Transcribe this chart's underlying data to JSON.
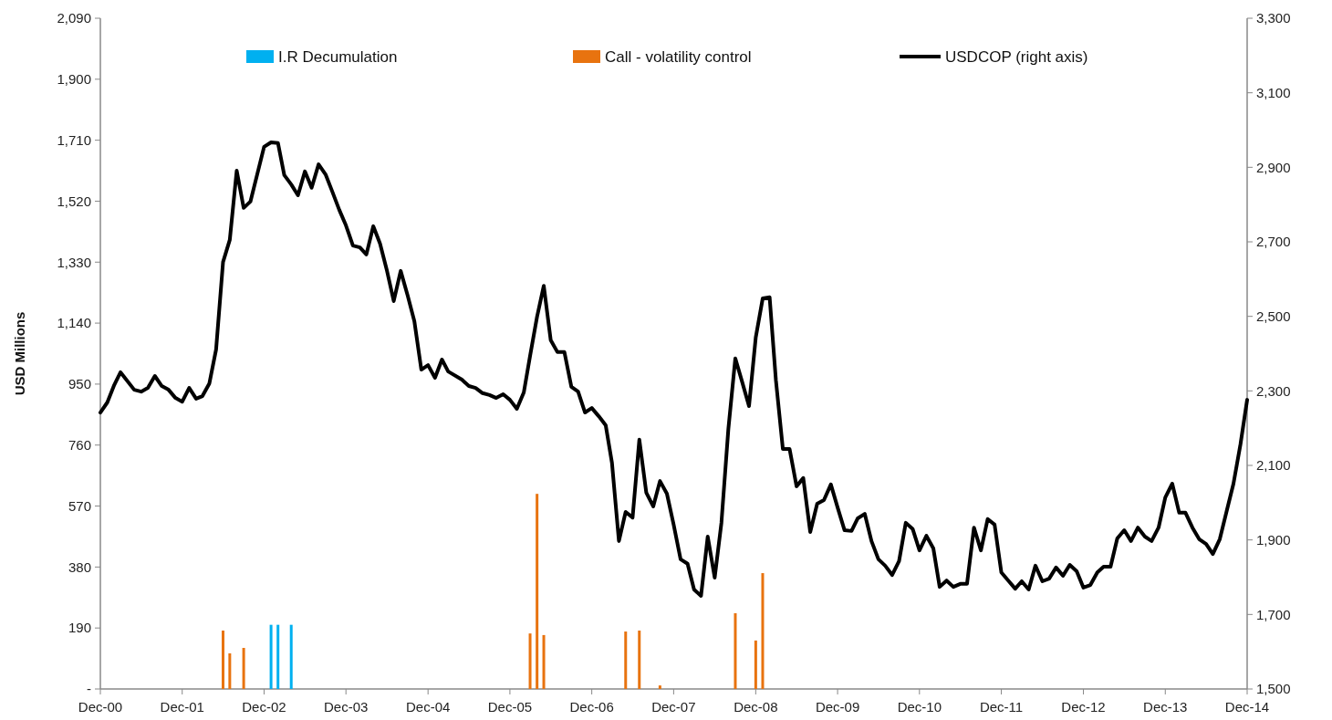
{
  "chart_data": {
    "type": "bar",
    "ylabel": "USD Millions",
    "legend": "top",
    "xlim": [
      "2000-12",
      "2014-12"
    ],
    "xticks": [
      {
        "value": "2000-12",
        "label": "Dec-00"
      },
      {
        "value": "2001-12",
        "label": "Dec-01"
      },
      {
        "value": "2002-12",
        "label": "Dec-02"
      },
      {
        "value": "2003-12",
        "label": "Dec-03"
      },
      {
        "value": "2004-12",
        "label": "Dec-04"
      },
      {
        "value": "2005-12",
        "label": "Dec-05"
      },
      {
        "value": "2006-12",
        "label": "Dec-06"
      },
      {
        "value": "2007-12",
        "label": "Dec-07"
      },
      {
        "value": "2008-12",
        "label": "Dec-08"
      },
      {
        "value": "2009-12",
        "label": "Dec-09"
      },
      {
        "value": "2010-12",
        "label": "Dec-10"
      },
      {
        "value": "2011-12",
        "label": "Dec-11"
      },
      {
        "value": "2012-12",
        "label": "Dec-12"
      },
      {
        "value": "2013-12",
        "label": "Dec-13"
      },
      {
        "value": "2014-12",
        "label": "Dec-14"
      }
    ],
    "ylim": [
      0,
      2090
    ],
    "yticks": [
      {
        "value": 0,
        "label": "-"
      },
      190,
      380,
      570,
      760,
      950,
      {
        "value": 1140,
        "label": "1,140"
      },
      {
        "value": 1330,
        "label": "1,330"
      },
      {
        "value": 1520,
        "label": "1,520"
      },
      {
        "value": 1710,
        "label": "1,710"
      },
      {
        "value": 1900,
        "label": "1,900"
      },
      {
        "value": 2090,
        "label": "2,090"
      }
    ],
    "y2lim": [
      1500,
      3300
    ],
    "y2ticks": [
      {
        "value": 1500,
        "label": "1,500"
      },
      {
        "value": 1700,
        "label": "1,700"
      },
      {
        "value": 1900,
        "label": "1,900"
      },
      {
        "value": 2100,
        "label": "2,100"
      },
      {
        "value": 2300,
        "label": "2,300"
      },
      {
        "value": 2500,
        "label": "2,500"
      },
      {
        "value": 2700,
        "label": "2,700"
      },
      {
        "value": 2900,
        "label": "2,900"
      },
      {
        "value": 3100,
        "label": "3,100"
      },
      {
        "value": 3300,
        "label": "3,300"
      }
    ],
    "series": [
      {
        "name": "I.R Decumulation",
        "color": "#00b0f0",
        "x": [
          "2003-01",
          "2003-02",
          "2003-04"
        ],
        "values": [
          200,
          200,
          200
        ]
      },
      {
        "name": "Call - volatility control",
        "color": "#e8730f",
        "x": [
          "2002-06",
          "2002-07",
          "2002-09",
          "2006-03",
          "2006-04",
          "2006-05",
          "2007-05",
          "2007-07",
          "2007-10",
          "2008-09",
          "2008-12",
          "2009-01"
        ],
        "values": [
          182,
          111,
          128,
          173,
          608,
          168,
          179,
          182,
          11,
          236,
          151,
          361
        ]
      },
      {
        "name": "USDCOP (right axis)",
        "type": "line",
        "axis": "y2",
        "color": "#000000",
        "x": [
          "2000-12",
          "2001-01",
          "2001-02",
          "2001-03",
          "2001-05",
          "2001-06",
          "2001-07",
          "2001-08",
          "2001-09",
          "2001-10",
          "2001-11",
          "2001-12",
          "2002-01",
          "2002-02",
          "2002-03",
          "2002-04",
          "2002-05",
          "2002-06",
          "2002-07",
          "2002-08",
          "2002-09",
          "2002-10",
          "2002-12",
          "2003-01",
          "2003-02",
          "2003-03",
          "2003-04",
          "2003-05",
          "2003-06",
          "2003-07",
          "2003-08",
          "2003-09",
          "2003-10",
          "2003-11",
          "2003-12",
          "2004-01",
          "2004-02",
          "2004-03",
          "2004-04",
          "2004-05",
          "2004-06",
          "2004-07",
          "2004-08",
          "2004-09",
          "2004-10",
          "2004-11",
          "2004-12",
          "2005-01",
          "2005-02",
          "2005-03",
          "2005-05",
          "2005-06",
          "2005-07",
          "2005-08",
          "2005-09",
          "2005-10",
          "2005-11",
          "2005-12",
          "2006-01",
          "2006-02",
          "2006-03",
          "2006-04",
          "2006-05",
          "2006-06",
          "2006-07",
          "2006-08",
          "2006-09",
          "2006-10",
          "2006-11",
          "2006-12",
          "2007-01",
          "2007-02",
          "2007-03",
          "2007-04",
          "2007-05",
          "2007-06",
          "2007-07",
          "2007-08",
          "2007-09",
          "2007-10",
          "2007-11",
          "2007-12",
          "2008-01",
          "2008-02",
          "2008-03",
          "2008-04",
          "2008-05",
          "2008-06",
          "2008-07",
          "2008-08",
          "2008-09",
          "2008-10",
          "2008-11",
          "2008-12",
          "2009-01",
          "2009-02",
          "2009-03",
          "2009-04",
          "2009-05",
          "2009-06",
          "2009-07",
          "2009-08",
          "2009-09",
          "2009-10",
          "2009-11",
          "2009-12",
          "2010-01",
          "2010-02",
          "2010-03",
          "2010-04",
          "2010-05",
          "2010-06",
          "2010-07",
          "2010-08",
          "2010-09",
          "2010-10",
          "2010-11",
          "2010-12",
          "2011-01",
          "2011-02",
          "2011-03",
          "2011-04",
          "2011-05",
          "2011-06",
          "2011-07",
          "2011-08",
          "2011-09",
          "2011-10",
          "2011-11",
          "2011-12",
          "2012-01",
          "2012-02",
          "2012-03",
          "2012-04",
          "2012-05",
          "2012-06",
          "2012-07",
          "2012-08",
          "2012-09",
          "2012-10",
          "2012-11",
          "2012-12",
          "2013-01",
          "2013-02",
          "2013-03",
          "2013-04",
          "2013-05",
          "2013-06",
          "2013-07",
          "2013-08",
          "2013-09",
          "2013-10",
          "2013-11",
          "2013-12",
          "2014-01",
          "2014-02",
          "2014-03",
          "2014-04",
          "2014-05",
          "2014-06",
          "2014-07",
          "2014-08",
          "2014-09",
          "2014-10",
          "2014-11",
          "2014-12"
        ],
        "values": [
          2242,
          2269,
          2316,
          2350,
          2303,
          2298,
          2308,
          2340,
          2313,
          2303,
          2281,
          2271,
          2308,
          2279,
          2286,
          2320,
          2411,
          2646,
          2705,
          2891,
          2791,
          2808,
          2955,
          2967,
          2965,
          2879,
          2854,
          2825,
          2889,
          2845,
          2908,
          2881,
          2835,
          2786,
          2744,
          2690,
          2685,
          2666,
          2742,
          2695,
          2622,
          2541,
          2622,
          2556,
          2487,
          2357,
          2369,
          2335,
          2384,
          2352,
          2330,
          2313,
          2308,
          2294,
          2289,
          2281,
          2291,
          2276,
          2252,
          2296,
          2394,
          2499,
          2582,
          2436,
          2404,
          2404,
          2311,
          2298,
          2242,
          2254,
          2232,
          2208,
          2107,
          1897,
          1975,
          1960,
          2169,
          2027,
          1990,
          2058,
          2024,
          1941,
          1848,
          1836,
          1767,
          1750,
          1909,
          1799,
          1946,
          2198,
          2387,
          2325,
          2259,
          2443,
          2548,
          2551,
          2328,
          2144,
          2144,
          2044,
          2066,
          1921,
          1997,
          2007,
          2049,
          1987,
          1926,
          1924,
          1958,
          1970,
          1897,
          1848,
          1831,
          1806,
          1843,
          1946,
          1929,
          1872,
          1911,
          1877,
          1774,
          1791,
          1774,
          1782,
          1782,
          1933,
          1872,
          1956,
          1941,
          1813,
          1791,
          1769,
          1789,
          1767,
          1831,
          1789,
          1796,
          1826,
          1804,
          1833,
          1816,
          1772,
          1779,
          1813,
          1828,
          1828,
          1904,
          1926,
          1897,
          1933,
          1909,
          1897,
          1933,
          2014,
          2051,
          1973,
          1973,
          1933,
          1902,
          1889,
          1862,
          1902,
          1978,
          2051,
          2156,
          2276
        ]
      }
    ]
  }
}
